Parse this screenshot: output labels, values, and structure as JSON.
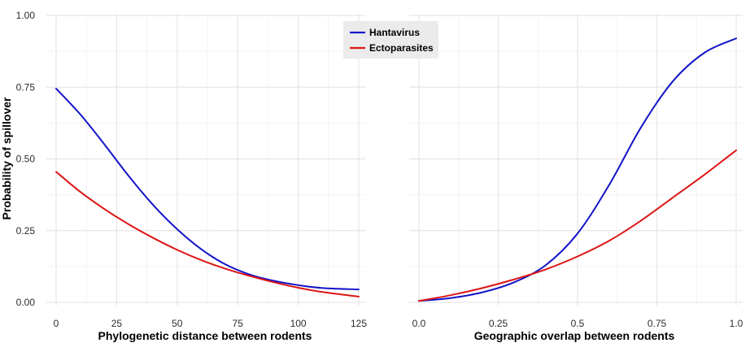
{
  "figure": {
    "y_axis_title": "Probability of spillover",
    "legend": {
      "placement": "top-center",
      "entries": [
        {
          "label": "Hantavirus",
          "color": "#1414c8"
        },
        {
          "label": "Ectoparasites",
          "color": "#dd1515"
        }
      ]
    }
  },
  "chart_data": [
    {
      "type": "line",
      "xlabel": "Phylogenetic distance between rodents",
      "ylabel": "Probability of spillover",
      "xlim": [
        0,
        125
      ],
      "ylim": [
        0,
        1
      ],
      "x_ticks": [
        "0",
        "25",
        "50",
        "75",
        "100",
        "125"
      ],
      "y_ticks": [
        "0.00",
        "0.25",
        "0.50",
        "0.75",
        "1.00"
      ],
      "grid": true,
      "series": [
        {
          "name": "Hantavirus",
          "color": "#1414c8",
          "x": [
            0,
            10,
            20,
            30,
            40,
            50,
            60,
            70,
            80,
            90,
            100,
            110,
            125
          ],
          "y": [
            0.745,
            0.655,
            0.55,
            0.44,
            0.34,
            0.255,
            0.185,
            0.132,
            0.097,
            0.075,
            0.06,
            0.05,
            0.045
          ]
        },
        {
          "name": "Ectoparasites",
          "color": "#dd1515",
          "x": [
            0,
            10,
            20,
            30,
            40,
            50,
            60,
            70,
            80,
            90,
            100,
            110,
            125
          ],
          "y": [
            0.455,
            0.385,
            0.325,
            0.272,
            0.225,
            0.183,
            0.147,
            0.117,
            0.092,
            0.07,
            0.051,
            0.036,
            0.02
          ]
        }
      ]
    },
    {
      "type": "line",
      "xlabel": "Geographic overlap between rodents",
      "ylabel": "",
      "xlim": [
        0,
        1
      ],
      "ylim": [
        0,
        1
      ],
      "x_ticks": [
        "0.0",
        "0.25",
        "0.5",
        "0.75",
        "1.0"
      ],
      "grid": true,
      "series": [
        {
          "name": "Hantavirus",
          "color": "#1414c8",
          "x": [
            0.0,
            0.1,
            0.2,
            0.3,
            0.4,
            0.5,
            0.6,
            0.7,
            0.8,
            0.9,
            1.0
          ],
          "y": [
            0.005,
            0.015,
            0.035,
            0.07,
            0.13,
            0.24,
            0.41,
            0.61,
            0.77,
            0.87,
            0.92
          ]
        },
        {
          "name": "Ectoparasites",
          "color": "#dd1515",
          "x": [
            0.0,
            0.1,
            0.2,
            0.3,
            0.4,
            0.5,
            0.6,
            0.7,
            0.8,
            0.9,
            1.0
          ],
          "y": [
            0.005,
            0.025,
            0.05,
            0.08,
            0.115,
            0.16,
            0.215,
            0.285,
            0.365,
            0.445,
            0.53
          ]
        }
      ]
    }
  ]
}
